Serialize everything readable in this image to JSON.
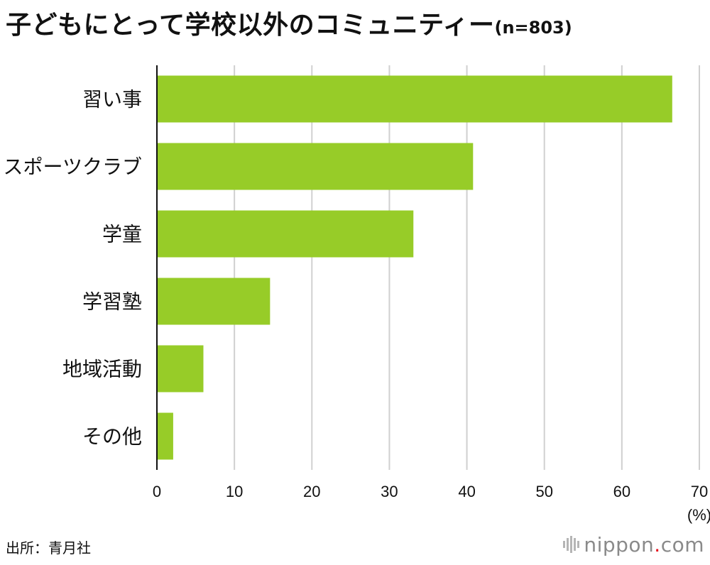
{
  "title": {
    "main": "子どもにとって学校以外のコミュニティー",
    "sample": "(n=803)"
  },
  "chart_data": {
    "type": "bar",
    "orientation": "horizontal",
    "categories": [
      "習い事",
      "スポーツクラブ",
      "学童",
      "学習塾",
      "地域活動",
      "その他"
    ],
    "values": [
      66.5,
      40.8,
      33.1,
      14.6,
      6.0,
      2.1
    ],
    "xlim": [
      0,
      70
    ],
    "ticks": [
      "0",
      "10",
      "20",
      "30",
      "40",
      "50",
      "60",
      "70"
    ],
    "unit": "(%)",
    "grid": true,
    "bar_color": "#97cc28",
    "grid_color": "#d0d0d0"
  },
  "source": "出所：青月社",
  "logo": {
    "name": "nippon",
    "dot": ".",
    "tld": "com",
    "accent": "#e60012"
  }
}
